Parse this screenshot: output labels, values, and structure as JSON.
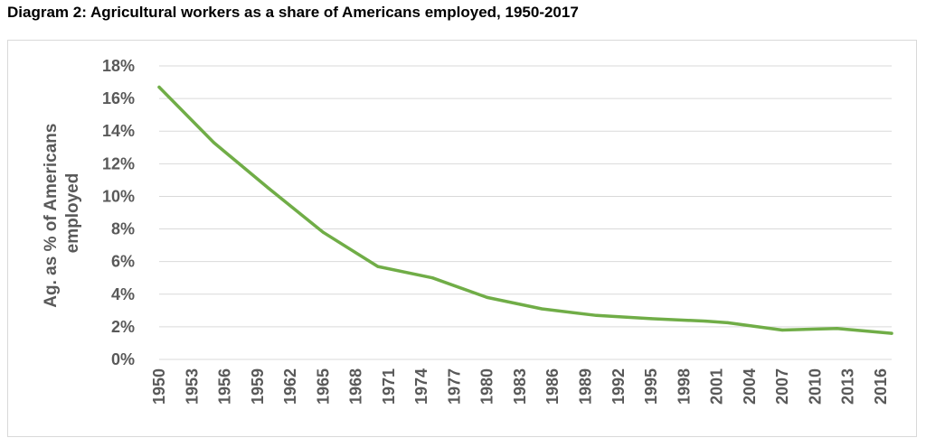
{
  "title": "Diagram 2: Agricultural workers as a share of Americans employed, 1950-2017",
  "chart_data": {
    "type": "line",
    "title": "Diagram 2: Agricultural workers as a share of Americans employed, 1950-2017",
    "ylabel_lines": [
      "Ag. as % of Americans",
      "employed"
    ],
    "xlabel": "",
    "ylim": [
      0,
      18
    ],
    "yticks": [
      0,
      2,
      4,
      6,
      8,
      10,
      12,
      14,
      16,
      18
    ],
    "ytick_labels": [
      "0%",
      "2%",
      "4%",
      "6%",
      "8%",
      "10%",
      "12%",
      "14%",
      "16%",
      "18%"
    ],
    "xlim": [
      1950,
      2017
    ],
    "xticks": [
      1950,
      1953,
      1956,
      1959,
      1962,
      1965,
      1968,
      1971,
      1974,
      1977,
      1980,
      1983,
      1986,
      1989,
      1992,
      1995,
      1998,
      2001,
      2004,
      2007,
      2010,
      2013,
      2016
    ],
    "grid": true,
    "legend": "none",
    "color": "#70ad47",
    "series": [
      {
        "x": [
          1950,
          1955,
          1960,
          1965,
          1970,
          1975,
          1980,
          1985,
          1990,
          1995,
          2000,
          2002,
          2007,
          2012,
          2017
        ],
        "values": [
          16.7,
          13.3,
          10.5,
          7.8,
          5.7,
          5.0,
          3.8,
          3.1,
          2.7,
          2.5,
          2.35,
          2.25,
          1.8,
          1.9,
          1.6
        ]
      }
    ]
  }
}
